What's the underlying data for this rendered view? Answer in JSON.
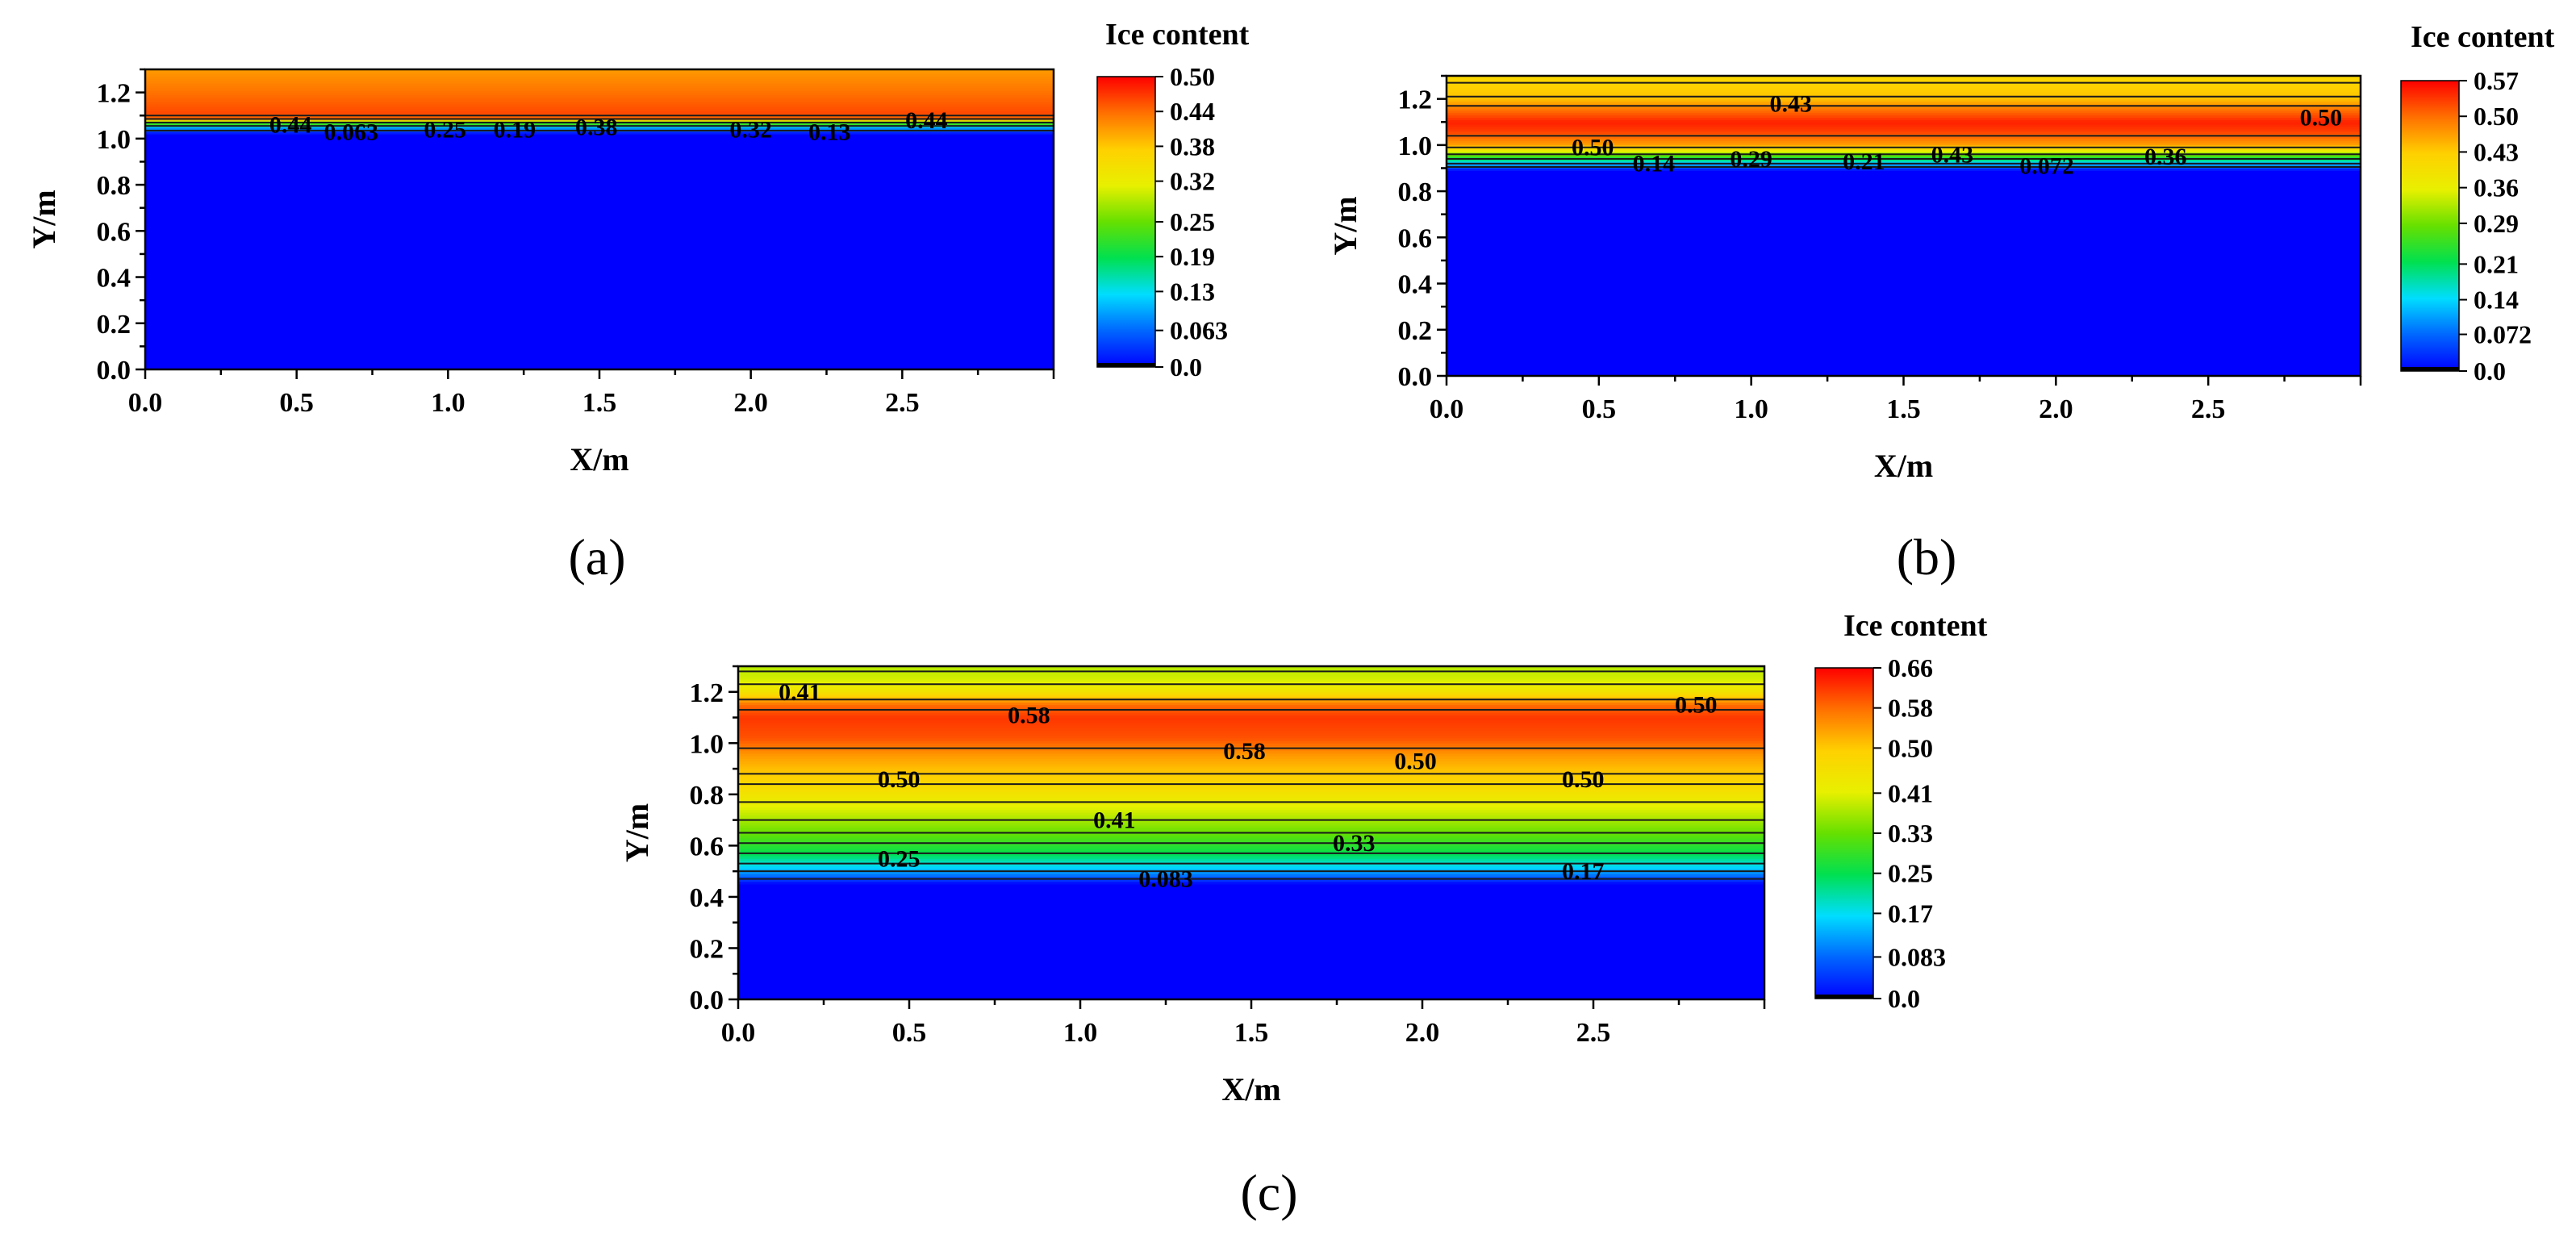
{
  "chart_data": [
    {
      "type": "heatmap",
      "panel_label": "(a)",
      "colorbar_title": "Ice content",
      "colorbar_ticks": [
        "0.50",
        "0.44",
        "0.38",
        "0.32",
        "0.25",
        "0.19",
        "0.13",
        "0.063",
        "0.0"
      ],
      "colorbar_tick_values": [
        0.5,
        0.44,
        0.38,
        0.32,
        0.25,
        0.19,
        0.13,
        0.063,
        0.0
      ],
      "vmax": 0.5,
      "xlabel": "X/m",
      "ylabel": "Y/m",
      "xlim": [
        0,
        3.0
      ],
      "ylim": [
        0,
        1.3
      ],
      "xticks": [
        "0.0",
        "0.5",
        "1.0",
        "1.5",
        "2.0",
        "2.5"
      ],
      "xtick_values": [
        0,
        0.5,
        1.0,
        1.5,
        2.0,
        2.5
      ],
      "yticks": [
        "0.0",
        "0.2",
        "0.4",
        "0.6",
        "0.8",
        "1.0",
        "1.2"
      ],
      "ytick_values": [
        0,
        0.2,
        0.4,
        0.6,
        0.8,
        1.0,
        1.2
      ],
      "profile": [
        [
          0.0,
          0.0
        ],
        [
          1.02,
          0.0
        ],
        [
          1.05,
          0.1
        ],
        [
          1.075,
          0.3
        ],
        [
          1.09,
          0.44
        ],
        [
          1.11,
          0.46
        ],
        [
          1.3,
          0.41
        ]
      ],
      "contour_levels": [
        1.035,
        1.055,
        1.07,
        1.085,
        1.1
      ],
      "contour_labels": [
        {
          "text": "0.44",
          "x": 0.48,
          "y": 1.06
        },
        {
          "text": "0.063",
          "x": 0.68,
          "y": 1.03
        },
        {
          "text": "0.25",
          "x": 0.99,
          "y": 1.04
        },
        {
          "text": "0.19",
          "x": 1.22,
          "y": 1.04
        },
        {
          "text": "0.38",
          "x": 1.49,
          "y": 1.05
        },
        {
          "text": "0.32",
          "x": 2.0,
          "y": 1.04
        },
        {
          "text": "0.13",
          "x": 2.26,
          "y": 1.03
        },
        {
          "text": "0.44",
          "x": 2.58,
          "y": 1.08
        }
      ]
    },
    {
      "type": "heatmap",
      "panel_label": "(b)",
      "colorbar_title": "Ice content",
      "colorbar_ticks": [
        "0.57",
        "0.50",
        "0.43",
        "0.36",
        "0.29",
        "0.21",
        "0.14",
        "0.072",
        "0.0"
      ],
      "colorbar_tick_values": [
        0.57,
        0.5,
        0.43,
        0.36,
        0.29,
        0.21,
        0.14,
        0.072,
        0.0
      ],
      "vmax": 0.57,
      "xlabel": "X/m",
      "ylabel": "Y/m",
      "xlim": [
        0,
        3.0
      ],
      "ylim": [
        0,
        1.3
      ],
      "xticks": [
        "0.0",
        "0.5",
        "1.0",
        "1.5",
        "2.0",
        "2.5"
      ],
      "xtick_values": [
        0,
        0.5,
        1.0,
        1.5,
        2.0,
        2.5
      ],
      "yticks": [
        "0.0",
        "0.2",
        "0.4",
        "0.6",
        "0.8",
        "1.0",
        "1.2"
      ],
      "ytick_values": [
        0,
        0.2,
        0.4,
        0.6,
        0.8,
        1.0,
        1.2
      ],
      "profile": [
        [
          0.0,
          0.0
        ],
        [
          0.89,
          0.0
        ],
        [
          0.92,
          0.12
        ],
        [
          0.96,
          0.3
        ],
        [
          1.0,
          0.46
        ],
        [
          1.06,
          0.53
        ],
        [
          1.1,
          0.55
        ],
        [
          1.15,
          0.5
        ],
        [
          1.2,
          0.44
        ],
        [
          1.3,
          0.41
        ]
      ],
      "contour_levels": [
        0.905,
        0.92,
        0.94,
        0.96,
        0.99,
        1.04,
        1.17,
        1.21,
        1.27
      ],
      "contour_labels": [
        {
          "text": "0.43",
          "x": 1.13,
          "y": 1.18
        },
        {
          "text": "0.50",
          "x": 2.87,
          "y": 1.12
        },
        {
          "text": "0.50",
          "x": 0.48,
          "y": 0.99
        },
        {
          "text": "0.14",
          "x": 0.68,
          "y": 0.92
        },
        {
          "text": "0.29",
          "x": 1.0,
          "y": 0.94
        },
        {
          "text": "0.21",
          "x": 1.37,
          "y": 0.93
        },
        {
          "text": "0.43",
          "x": 1.66,
          "y": 0.96
        },
        {
          "text": "0.072",
          "x": 1.97,
          "y": 0.91
        },
        {
          "text": "0.36",
          "x": 2.36,
          "y": 0.95
        }
      ]
    },
    {
      "type": "heatmap",
      "panel_label": "(c)",
      "colorbar_title": "Ice content",
      "colorbar_ticks": [
        "0.66",
        "0.58",
        "0.50",
        "0.41",
        "0.33",
        "0.25",
        "0.17",
        "0.083",
        "0.0"
      ],
      "colorbar_tick_values": [
        0.66,
        0.58,
        0.5,
        0.41,
        0.33,
        0.25,
        0.17,
        0.083,
        0.0
      ],
      "vmax": 0.66,
      "xlabel": "X/m",
      "ylabel": "Y/m",
      "xlim": [
        0,
        3.0
      ],
      "ylim": [
        0,
        1.3
      ],
      "xticks": [
        "0.0",
        "0.5",
        "1.0",
        "1.5",
        "2.0",
        "2.5"
      ],
      "xtick_values": [
        0,
        0.5,
        1.0,
        1.5,
        2.0,
        2.5
      ],
      "yticks": [
        "0.0",
        "0.2",
        "0.4",
        "0.6",
        "0.8",
        "1.0",
        "1.2"
      ],
      "ytick_values": [
        0,
        0.2,
        0.4,
        0.6,
        0.8,
        1.0,
        1.2
      ],
      "profile": [
        [
          0.0,
          0.0
        ],
        [
          0.45,
          0.0
        ],
        [
          0.48,
          0.08
        ],
        [
          0.52,
          0.17
        ],
        [
          0.57,
          0.25
        ],
        [
          0.65,
          0.33
        ],
        [
          0.75,
          0.41
        ],
        [
          0.85,
          0.48
        ],
        [
          0.95,
          0.54
        ],
        [
          1.02,
          0.6
        ],
        [
          1.1,
          0.62
        ],
        [
          1.15,
          0.58
        ],
        [
          1.2,
          0.45
        ],
        [
          1.25,
          0.4
        ],
        [
          1.3,
          0.38
        ]
      ],
      "contour_levels": [
        0.47,
        0.5,
        0.53,
        0.57,
        0.61,
        0.65,
        0.7,
        0.77,
        0.84,
        0.88,
        0.98,
        1.13,
        1.17,
        1.23,
        1.28
      ],
      "contour_labels": [
        {
          "text": "0.41",
          "x": 0.18,
          "y": 1.2
        },
        {
          "text": "0.58",
          "x": 0.85,
          "y": 1.11
        },
        {
          "text": "0.50",
          "x": 2.8,
          "y": 1.15
        },
        {
          "text": "0.58",
          "x": 1.48,
          "y": 0.97
        },
        {
          "text": "0.50",
          "x": 1.98,
          "y": 0.93
        },
        {
          "text": "0.50",
          "x": 0.47,
          "y": 0.86
        },
        {
          "text": "0.50",
          "x": 2.47,
          "y": 0.86
        },
        {
          "text": "0.41",
          "x": 1.1,
          "y": 0.7
        },
        {
          "text": "0.33",
          "x": 1.8,
          "y": 0.61
        },
        {
          "text": "0.25",
          "x": 0.47,
          "y": 0.55
        },
        {
          "text": "0.17",
          "x": 2.47,
          "y": 0.5
        },
        {
          "text": "0.083",
          "x": 1.25,
          "y": 0.47
        }
      ]
    }
  ]
}
